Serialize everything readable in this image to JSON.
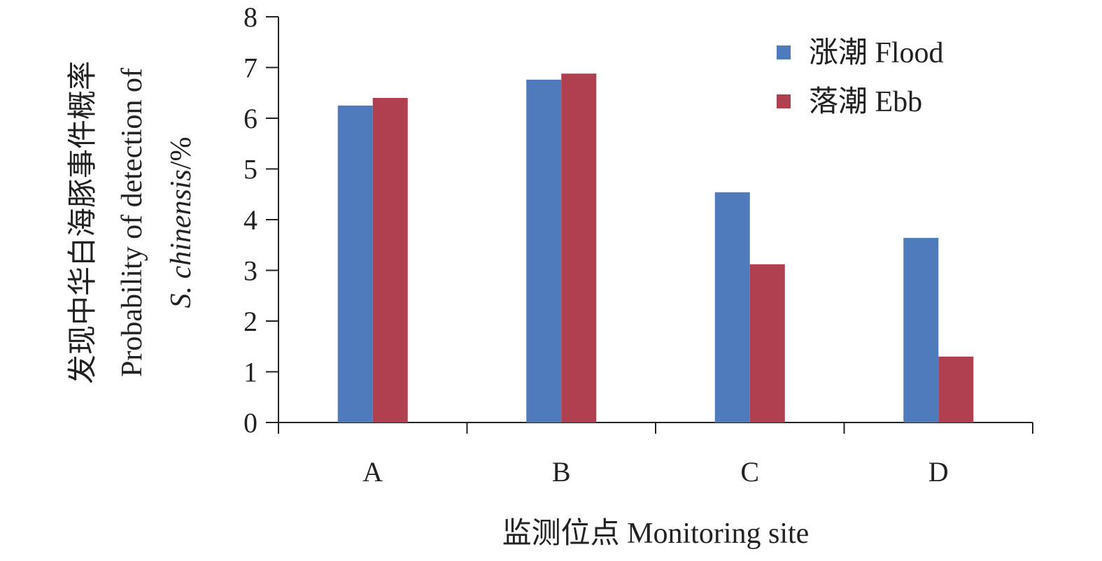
{
  "chart_data": {
    "type": "bar",
    "categories": [
      "A",
      "B",
      "C",
      "D"
    ],
    "series": [
      {
        "name": "涨潮 Flood",
        "color": "#4f7bbc",
        "values": [
          6.25,
          6.76,
          4.54,
          3.64
        ]
      },
      {
        "name": "落潮 Ebb",
        "color": "#b0404f",
        "values": [
          6.4,
          6.88,
          3.12,
          1.3
        ]
      }
    ],
    "xlabel": "监测位点 Monitoring site",
    "ylabel": {
      "line1": "发现中华白海豚事件概率",
      "line2": "Probability of detection of",
      "line3_italic": "S. chinensis",
      "line3_rest": "/%"
    },
    "ylim": [
      0,
      8
    ],
    "yticks": [
      "0",
      "1",
      "2",
      "3",
      "4",
      "5",
      "6",
      "7",
      "8"
    ],
    "legend_position": "top-right",
    "grid": false
  }
}
